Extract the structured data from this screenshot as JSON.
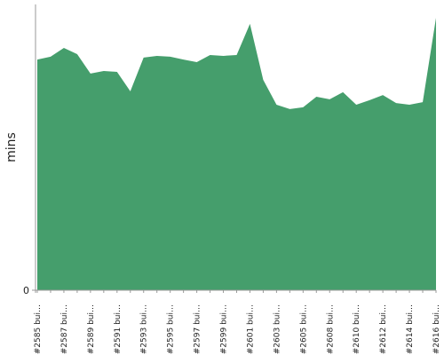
{
  "chart_data": {
    "type": "area",
    "y_label": "mins",
    "color": "#459e6c",
    "categories": [
      "#2585 bui…",
      null,
      "#2587 bui…",
      null,
      "#2589 bui…",
      null,
      "#2591 bui…",
      null,
      "#2593 bui…",
      null,
      "#2595 bui…",
      null,
      "#2597 bui…",
      null,
      "#2599 bui…",
      null,
      "#2601 bui…",
      null,
      "#2603 bui…",
      null,
      "#2605 bui…",
      null,
      "#2608 bui…",
      null,
      "#2610 bui…",
      null,
      "#2612 bui…",
      null,
      "#2614 bui…",
      null,
      "#2616 bui…"
    ],
    "values": [
      80.7,
      81.7,
      84.8,
      82.6,
      75.8,
      76.7,
      76.4,
      69.6,
      81.4,
      82.0,
      81.7,
      80.7,
      79.8,
      82.3,
      82.0,
      82.3,
      93.2,
      73.6,
      64.9,
      63.4,
      64.0,
      67.7,
      66.8,
      69.3,
      64.9,
      66.5,
      68.3,
      65.5,
      64.9,
      65.8,
      95.3
    ],
    "ylim": [
      0,
      100
    ],
    "yticks": [
      0
    ]
  }
}
